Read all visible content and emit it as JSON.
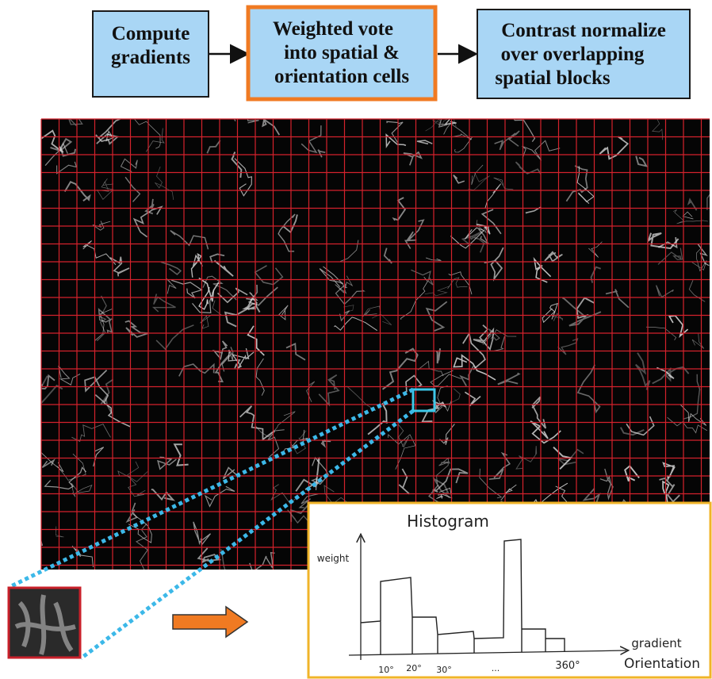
{
  "steps": [
    {
      "lines": [
        "Compute",
        "gradients"
      ]
    },
    {
      "lines": [
        "Weighted vote",
        "into spatial &",
        "orientation cells"
      ]
    },
    {
      "lines": [
        "Contrast normalize",
        "over overlapping",
        "spatial blocks"
      ]
    }
  ],
  "histogram": {
    "title": "Histogram",
    "y_label": "weight",
    "x_label": [
      "gradient",
      "Orientation"
    ],
    "x_ticks": [
      "10°",
      "20°",
      "30°",
      "...",
      "360°"
    ]
  }
}
